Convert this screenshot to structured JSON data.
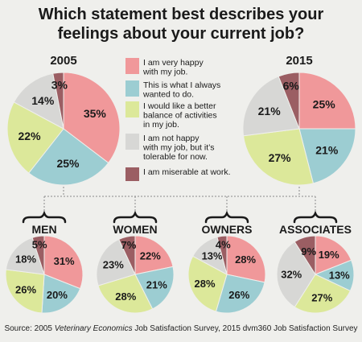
{
  "title": {
    "line1": "Which statement best describes your",
    "line2": "feelings about your current job?"
  },
  "legend": [
    {
      "label_lines": [
        "I am very happy",
        "with my job."
      ],
      "color": "#f0989a"
    },
    {
      "label_lines": [
        "This is what I always",
        "wanted to do."
      ],
      "color": "#9ccdd2"
    },
    {
      "label_lines": [
        "I would like a better",
        "balance of activities",
        "in my job."
      ],
      "color": "#dce89a"
    },
    {
      "label_lines": [
        "I am not happy",
        "with my job, but it’s",
        "tolerable for now."
      ],
      "color": "#d7d7d5"
    },
    {
      "label_lines": [
        "I am miserable at work."
      ],
      "color": "#9b5e63"
    }
  ],
  "source": {
    "prefix": "Source: 2005 ",
    "italic": "Veterinary Economics",
    "suffix": " Job Satisfaction Survey, 2015 dvm360 Job Satisfaction Survey"
  },
  "chart_data": [
    {
      "type": "pie",
      "title": "2005",
      "categories": [
        "I am very happy with my job.",
        "This is what I always wanted to do.",
        "I would like a better balance of activities in my job.",
        "I am not happy with my job, but it’s tolerable for now.",
        "I am miserable at work."
      ],
      "values": [
        35,
        25,
        22,
        14,
        3
      ],
      "value_labels": [
        "35%",
        "25%",
        "22%",
        "14%",
        "3%"
      ]
    },
    {
      "type": "pie",
      "title": "2015",
      "categories": [
        "I am very happy with my job.",
        "This is what I always wanted to do.",
        "I would like a better balance of activities in my job.",
        "I am not happy with my job, but it’s tolerable for now.",
        "I am miserable at work."
      ],
      "values": [
        25,
        21,
        27,
        21,
        6
      ],
      "value_labels": [
        "25%",
        "21%",
        "27%",
        "21%",
        "6%"
      ]
    },
    {
      "type": "pie",
      "title": "MEN",
      "categories": [
        "I am very happy with my job.",
        "This is what I always wanted to do.",
        "I would like a better balance of activities in my job.",
        "I am not happy with my job, but it’s tolerable for now.",
        "I am miserable at work."
      ],
      "values": [
        31,
        20,
        26,
        18,
        5
      ],
      "value_labels": [
        "31%",
        "20%",
        "26%",
        "18%",
        "5%"
      ]
    },
    {
      "type": "pie",
      "title": "WOMEN",
      "categories": [
        "I am very happy with my job.",
        "This is what I always wanted to do.",
        "I would like a better balance of activities in my job.",
        "I am not happy with my job, but it’s tolerable for now.",
        "I am miserable at work."
      ],
      "values": [
        22,
        21,
        28,
        23,
        7
      ],
      "value_labels": [
        "22%",
        "21%",
        "28%",
        "23%",
        "7%"
      ]
    },
    {
      "type": "pie",
      "title": "OWNERS",
      "categories": [
        "I am very happy with my job.",
        "This is what I always wanted to do.",
        "I would like a better balance of activities in my job.",
        "I am not happy with my job, but it’s tolerable for now.",
        "I am miserable at work."
      ],
      "values": [
        28,
        26,
        28,
        13,
        4
      ],
      "value_labels": [
        "28%",
        "26%",
        "28%",
        "13%",
        "4%"
      ]
    },
    {
      "type": "pie",
      "title": "ASSOCIATES",
      "categories": [
        "I am very happy with my job.",
        "This is what I always wanted to do.",
        "I would like a better balance of activities in my job.",
        "I am not happy with my job, but it’s tolerable for now.",
        "I am miserable at work."
      ],
      "values": [
        19,
        13,
        27,
        32,
        9
      ],
      "value_labels": [
        "19%",
        "13%",
        "27%",
        "32%",
        "9%"
      ]
    }
  ]
}
